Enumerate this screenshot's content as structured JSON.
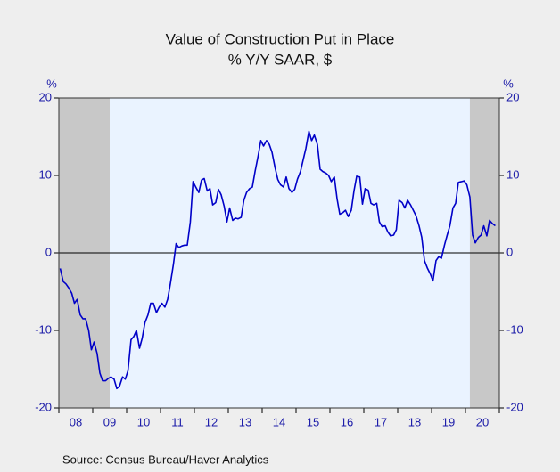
{
  "chart_data": {
    "type": "line",
    "title": "Value of Construction Put in Place",
    "subtitle": "% Y/Y   SAAR, $",
    "y_unit_left": "%",
    "y_unit_right": "%",
    "source": "Source:  Census Bureau/Haver Analytics",
    "xlim": [
      2008,
      2021
    ],
    "xticks": [
      {
        "value": 2008.5,
        "label": "08"
      },
      {
        "value": 2009.5,
        "label": "09"
      },
      {
        "value": 2010.5,
        "label": "10"
      },
      {
        "value": 2011.5,
        "label": "11"
      },
      {
        "value": 2012.5,
        "label": "12"
      },
      {
        "value": 2013.5,
        "label": "13"
      },
      {
        "value": 2014.5,
        "label": "14"
      },
      {
        "value": 2015.5,
        "label": "15"
      },
      {
        "value": 2016.5,
        "label": "16"
      },
      {
        "value": 2017.5,
        "label": "17"
      },
      {
        "value": 2018.5,
        "label": "18"
      },
      {
        "value": 2019.5,
        "label": "19"
      },
      {
        "value": 2020.5,
        "label": "20"
      }
    ],
    "ylim": [
      -20,
      20
    ],
    "yticks": [
      -20,
      -10,
      0,
      10,
      20
    ],
    "y2lim": [
      -20,
      20
    ],
    "y2ticks": [
      -20,
      -10,
      0,
      10,
      20
    ],
    "shaded_ranges": [
      [
        2008,
        2009.5
      ],
      [
        2020.13,
        2021
      ]
    ],
    "zero_line": true,
    "x": [
      2008.04,
      2008.13,
      2008.21,
      2008.29,
      2008.38,
      2008.46,
      2008.54,
      2008.63,
      2008.71,
      2008.79,
      2008.88,
      2008.96,
      2009.04,
      2009.13,
      2009.21,
      2009.29,
      2009.38,
      2009.46,
      2009.54,
      2009.63,
      2009.71,
      2009.79,
      2009.88,
      2009.96,
      2010.04,
      2010.13,
      2010.21,
      2010.29,
      2010.38,
      2010.46,
      2010.54,
      2010.63,
      2010.71,
      2010.79,
      2010.88,
      2010.96,
      2011.04,
      2011.13,
      2011.21,
      2011.29,
      2011.38,
      2011.46,
      2011.54,
      2011.63,
      2011.71,
      2011.79,
      2011.88,
      2011.96,
      2012.04,
      2012.13,
      2012.21,
      2012.29,
      2012.38,
      2012.46,
      2012.54,
      2012.63,
      2012.71,
      2012.79,
      2012.88,
      2012.96,
      2013.04,
      2013.13,
      2013.21,
      2013.29,
      2013.38,
      2013.46,
      2013.54,
      2013.63,
      2013.71,
      2013.79,
      2013.88,
      2013.96,
      2014.04,
      2014.13,
      2014.21,
      2014.29,
      2014.38,
      2014.46,
      2014.54,
      2014.63,
      2014.71,
      2014.79,
      2014.88,
      2014.96,
      2015.04,
      2015.13,
      2015.21,
      2015.29,
      2015.38,
      2015.46,
      2015.54,
      2015.63,
      2015.71,
      2015.79,
      2015.88,
      2015.96,
      2016.04,
      2016.13,
      2016.21,
      2016.29,
      2016.38,
      2016.46,
      2016.54,
      2016.63,
      2016.71,
      2016.79,
      2016.88,
      2016.96,
      2017.04,
      2017.13,
      2017.21,
      2017.29,
      2017.38,
      2017.46,
      2017.54,
      2017.63,
      2017.71,
      2017.79,
      2017.88,
      2017.96,
      2018.04,
      2018.13,
      2018.21,
      2018.29,
      2018.38,
      2018.46,
      2018.54,
      2018.63,
      2018.71,
      2018.79,
      2018.88,
      2018.96,
      2019.04,
      2019.13,
      2019.21,
      2019.29,
      2019.38,
      2019.46,
      2019.54,
      2019.63,
      2019.71,
      2019.79,
      2019.88,
      2019.96,
      2020.04,
      2020.13,
      2020.21,
      2020.29,
      2020.38,
      2020.46,
      2020.54,
      2020.63,
      2020.71,
      2020.79,
      2020.88
    ],
    "series": [
      {
        "name": "Construction Put in Place",
        "color": "#0000c8",
        "values": [
          -2,
          -3.7,
          -4,
          -4.5,
          -5.2,
          -6.5,
          -6,
          -8,
          -8.5,
          -8.5,
          -10,
          -12.5,
          -11.5,
          -13,
          -15.5,
          -16.5,
          -16.5,
          -16.2,
          -16,
          -16.3,
          -17.5,
          -17.2,
          -16,
          -16.3,
          -15.2,
          -11.2,
          -10.8,
          -10,
          -12.3,
          -11,
          -9,
          -8,
          -6.5,
          -6.5,
          -7.7,
          -7,
          -6.5,
          -7,
          -6,
          -4,
          -1.5,
          1.2,
          0.7,
          0.9,
          1,
          1,
          4,
          9.2,
          8.5,
          7.8,
          9.4,
          9.6,
          8,
          8.3,
          6.2,
          6.5,
          8.2,
          7.5,
          6,
          4,
          5.8,
          4.2,
          4.5,
          4.4,
          4.6,
          6.8,
          7.8,
          8.3,
          8.5,
          10.5,
          12.5,
          14.5,
          13.8,
          14.5,
          14,
          13,
          11,
          9.5,
          8.8,
          8.5,
          9.8,
          8.3,
          7.8,
          8.2,
          9.5,
          10.5,
          12,
          13.5,
          15.7,
          14.5,
          15.2,
          14,
          10.8,
          10.5,
          10.3,
          10,
          9.2,
          9.8,
          7,
          5,
          5.2,
          5.5,
          4.7,
          5.5,
          8,
          9.9,
          9.8,
          6.3,
          8.3,
          8.1,
          6.4,
          6.2,
          6.4,
          4,
          3.4,
          3.5,
          2.7,
          2.2,
          2.3,
          3,
          6.8,
          6.5,
          5.8,
          6.8,
          6.2,
          5.5,
          4.8,
          3.5,
          2,
          -1,
          -2,
          -2.7,
          -3.6,
          -1,
          -0.5,
          -0.7,
          1,
          2.3,
          3.5,
          5.8,
          6.4,
          9.1,
          9.2,
          9.3,
          8.8,
          7.2,
          2.3,
          1.3,
          2,
          2.3,
          3.5,
          2.2,
          4.2,
          3.8,
          3.5
        ]
      }
    ]
  }
}
